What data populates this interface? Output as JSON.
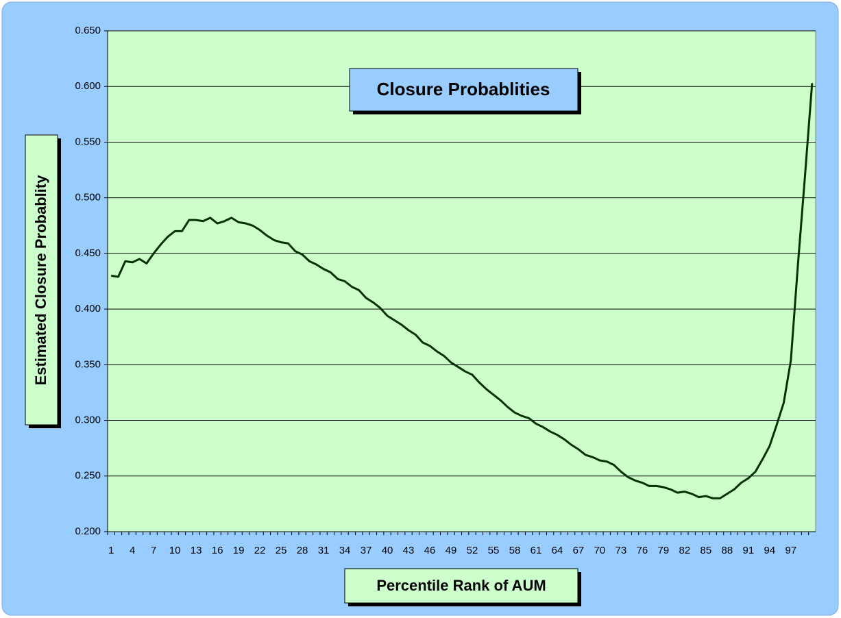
{
  "chart_data": {
    "type": "line",
    "title": "Closure Probablities",
    "x_label": "Percentile Rank of AUM",
    "y_label": "Estimated Closure Probablity",
    "categories": [
      "1",
      null,
      null,
      "4",
      null,
      null,
      "7",
      null,
      null,
      "10",
      null,
      null,
      "13",
      null,
      null,
      "16",
      null,
      null,
      "19",
      null,
      null,
      "22",
      null,
      null,
      "25",
      null,
      null,
      "28",
      null,
      null,
      "31",
      null,
      null,
      "34",
      null,
      null,
      "37",
      null,
      null,
      "40",
      null,
      null,
      "43",
      null,
      null,
      "46",
      null,
      null,
      "49",
      null,
      null,
      "52",
      null,
      null,
      "55",
      null,
      null,
      "58",
      null,
      null,
      "61",
      null,
      null,
      "64",
      null,
      null,
      "67",
      null,
      null,
      "70",
      null,
      null,
      "73",
      null,
      null,
      "76",
      null,
      null,
      "79",
      null,
      null,
      "82",
      null,
      null,
      "85",
      null,
      null,
      "88",
      null,
      null,
      "91",
      null,
      null,
      "94",
      null,
      null,
      "97",
      null,
      null,
      null
    ],
    "series": [
      {
        "name": "Estimated Closure Probablity",
        "color": "#003300",
        "values": [
          0.43,
          0.429,
          0.443,
          0.442,
          0.445,
          0.441,
          0.45,
          0.458,
          0.465,
          0.47,
          0.47,
          0.48,
          0.48,
          0.479,
          0.482,
          0.477,
          0.479,
          0.482,
          0.478,
          0.477,
          0.475,
          0.471,
          0.466,
          0.462,
          0.46,
          0.459,
          0.452,
          0.449,
          0.443,
          0.44,
          0.436,
          0.433,
          0.427,
          0.425,
          0.42,
          0.417,
          0.41,
          0.406,
          0.401,
          0.394,
          0.39,
          0.386,
          0.381,
          0.377,
          0.37,
          0.367,
          0.362,
          0.358,
          0.352,
          0.348,
          0.344,
          0.341,
          0.334,
          0.328,
          0.323,
          0.318,
          0.312,
          0.307,
          0.304,
          0.302,
          0.297,
          0.294,
          0.29,
          0.287,
          0.283,
          0.278,
          0.274,
          0.269,
          0.267,
          0.264,
          0.263,
          0.26,
          0.254,
          0.249,
          0.246,
          0.244,
          0.241,
          0.241,
          0.24,
          0.238,
          0.235,
          0.236,
          0.234,
          0.231,
          0.232,
          0.23,
          0.23,
          0.234,
          0.238,
          0.244,
          0.248,
          0.254,
          0.265,
          0.277,
          0.296,
          0.316,
          0.354,
          0.44,
          0.52,
          0.603
        ]
      }
    ],
    "ylim": [
      0.2,
      0.65
    ],
    "yticks": [
      {
        "value": 0.2,
        "label": "0.200"
      },
      {
        "value": 0.25,
        "label": "0.250"
      },
      {
        "value": 0.3,
        "label": "0.300"
      },
      {
        "value": 0.35,
        "label": "0.350"
      },
      {
        "value": 0.4,
        "label": "0.400"
      },
      {
        "value": 0.45,
        "label": "0.450"
      },
      {
        "value": 0.5,
        "label": "0.500"
      },
      {
        "value": 0.55,
        "label": "0.550"
      },
      {
        "value": 0.6,
        "label": "0.600"
      },
      {
        "value": 0.65,
        "label": "0.650"
      }
    ],
    "grid": true
  }
}
